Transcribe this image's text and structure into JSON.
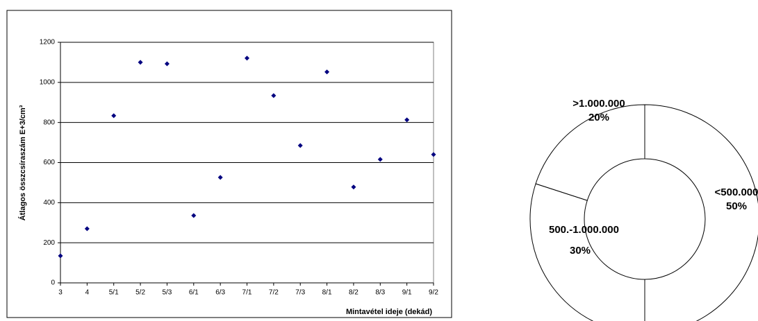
{
  "chart_data": [
    {
      "type": "scatter",
      "y_label": "Átlagos összcsíraszám E+3/cm³",
      "x_label": "Mintavétel ideje (dekád)",
      "categories": [
        "3",
        "4",
        "5/1",
        "5/2",
        "5/3",
        "6/1",
        "6/3",
        "7/1",
        "7/2",
        "7/3",
        "8/1",
        "8/2",
        "8/3",
        "9/1",
        "9/2"
      ],
      "values": [
        135,
        270,
        834,
        1100,
        1093,
        336,
        526,
        1121,
        934,
        685,
        1052,
        478,
        616,
        813,
        640
      ],
      "color": "#000080",
      "ylim": [
        0,
        1200
      ],
      "yticks": [
        0,
        200,
        400,
        600,
        800,
        1000,
        1200
      ],
      "grid": true
    },
    {
      "type": "donut",
      "categories": [
        "<500.000",
        "500.-1.000.000",
        ">1.000.000"
      ],
      "values": [
        50,
        30,
        20
      ],
      "value_labels": [
        "50%",
        "30%",
        "20%"
      ],
      "color": "#ffffff"
    }
  ]
}
